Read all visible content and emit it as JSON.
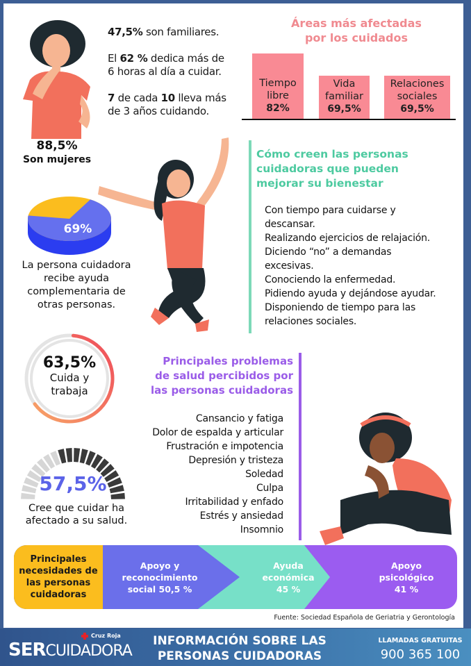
{
  "stats": {
    "familiares": {
      "value": "47,5%",
      "text": " son familiares."
    },
    "horas": {
      "pre": "El ",
      "value": "62 %",
      "text": " dedica más de",
      "line2": "6 horas al día a cuidar."
    },
    "anios": {
      "a": "7",
      "mid": " de cada ",
      "b": "10",
      "text": " lleva más",
      "line2": "de 3 años cuidando."
    },
    "mujeres": {
      "value": "88,5%",
      "label": "Son mujeres"
    }
  },
  "areas": {
    "title_line1": "Áreas más afectadas",
    "title_line2": "por los cuidados",
    "color": "#f98a94",
    "bars": [
      {
        "line1": "Tiempo",
        "line2": "libre",
        "value": "82%",
        "pct": 82
      },
      {
        "line1": "Vida",
        "line2": "familiar",
        "value": "69,5%",
        "pct": 69.5
      },
      {
        "line1": "Relaciones",
        "line2": "sociales",
        "value": "69,5%",
        "pct": 69.5
      }
    ]
  },
  "bienestar": {
    "title": [
      "Cómo creen las personas",
      "cuidadoras que pueden",
      "mejorar su bienestar"
    ],
    "color": "#4dcaa0",
    "items": [
      "Con tiempo para cuidarse y",
      "descansar.",
      "Realizando ejercicios de relajación.",
      "Diciendo “no” a demandas",
      "excesivas.",
      "Conociendo la enfermedad.",
      "Pidiendo ayuda y dejándose ayudar.",
      "Disponiendo de tiempo para las",
      "relaciones sociales."
    ]
  },
  "ayuda": {
    "value": "69%",
    "pct": 69,
    "text": [
      "La persona cuidadora",
      "recibe ayuda",
      "complementaria de",
      "otras personas."
    ],
    "colors": {
      "main": "#6570ee",
      "rest": "#fbbd1e"
    }
  },
  "trabaja": {
    "value": "63,5%",
    "pct": 63.5,
    "label1": "Cuida y",
    "label2": "trabaja"
  },
  "salud": {
    "value": "57,5%",
    "pct": 57.5,
    "text1": "Cree que cuidar ha",
    "text2": "afectado a su salud.",
    "color": "#5b63e8"
  },
  "problemas": {
    "title": [
      "Principales problemas",
      "de salud percibidos por",
      "las personas cuidadoras"
    ],
    "color": "#9a5ce8",
    "items": [
      "Cansancio y fatiga",
      "Dolor de espalda y articular",
      "Frustración e impotencia",
      "Depresión y tristeza",
      "Soledad",
      "Culpa",
      "Irritabilidad  y enfado",
      "Estrés y ansiedad",
      "Insomnio"
    ]
  },
  "necesidades": {
    "title": [
      "Principales",
      "necesidades de",
      "las personas",
      "cuidadoras"
    ],
    "items": [
      {
        "lines": [
          "Apoyo y",
          "reconocimiento",
          "social 50,5 %"
        ],
        "color": "#6b6fea"
      },
      {
        "lines": [
          "Ayuda",
          "económica",
          "45 %"
        ],
        "color": "#77e0c8"
      },
      {
        "lines": [
          "Apoyo",
          "psicológico",
          "41 %"
        ],
        "color": "#9b5cf0"
      }
    ]
  },
  "fuente": "Fuente: Sociedad Española de Geriatria y Gerontología",
  "footer": {
    "brand_ser": "SER",
    "brand_rest": "CUIDADORA",
    "cruz_roja": "Cruz Roja",
    "title1": "INFORMACIÓN SOBRE LAS",
    "title2": "PERSONAS CUIDADORAS",
    "phone_label": "LLAMADAS GRATUITAS",
    "phone": "900 365 100"
  }
}
